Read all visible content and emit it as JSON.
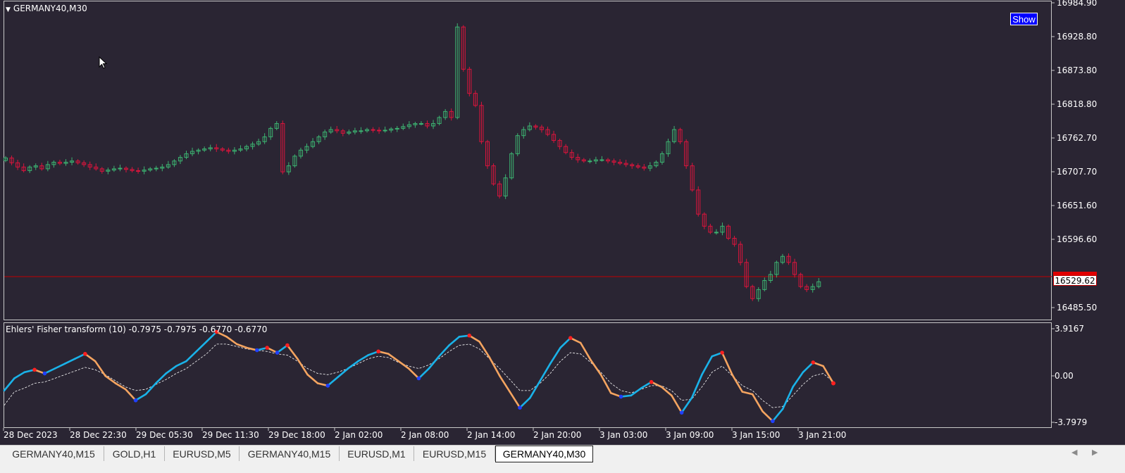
{
  "window": {
    "symbol_title": "GERMANY40,M30",
    "show_button": "Show"
  },
  "price_axis": {
    "labels": [
      "16984.90",
      "16928.80",
      "16873.80",
      "16818.80",
      "16762.70",
      "16707.70",
      "16651.60",
      "16596.60",
      "16485.50"
    ],
    "current_price": "16529.62"
  },
  "indicator": {
    "title": "Ehlers' Fisher transform (10) -0.7975 -0.7975 -0.6770 -0.6770",
    "axis_labels": [
      "3.9167",
      "0.00",
      "-3.7979"
    ]
  },
  "time_axis": {
    "labels": [
      "28 Dec 2023",
      "28 Dec 22:30",
      "29 Dec 05:30",
      "29 Dec 11:30",
      "29 Dec 18:00",
      "2 Jan 02:00",
      "2 Jan 08:00",
      "2 Jan 14:00",
      "2 Jan 20:00",
      "3 Jan 03:00",
      "3 Jan 09:00",
      "3 Jan 15:00",
      "3 Jan 21:00"
    ]
  },
  "tabs": [
    {
      "label": "GERMANY40,M15",
      "active": false
    },
    {
      "label": "GOLD,H1",
      "active": false
    },
    {
      "label": "EURUSD,M5",
      "active": false
    },
    {
      "label": "GERMANY40,M15",
      "active": false
    },
    {
      "label": "EURUSD,M1",
      "active": false
    },
    {
      "label": "EURUSD,M15",
      "active": false
    },
    {
      "label": "GERMANY40,M30",
      "active": true
    }
  ],
  "colors": {
    "background": "#2a2533",
    "bull_candle": "#3cb371",
    "bear_candle": "#dc143c",
    "fisher_up": "#1ab2e8",
    "fisher_down": "#f4a460",
    "signal_line": "#ffffff",
    "price_line": "#c00000"
  },
  "icons": {
    "cursor": "mouse-pointer-icon",
    "tab_scroll_left": "chevron-left-icon",
    "tab_scroll_right": "chevron-right-icon"
  },
  "chart_data": [
    {
      "type": "candlestick",
      "title": "GERMANY40,M30",
      "ylim": [
        16470,
        16990
      ],
      "close": [
        16733,
        16725,
        16718,
        16712,
        16718,
        16720,
        16715,
        16722,
        16726,
        16724,
        16726,
        16728,
        16725,
        16722,
        16718,
        16715,
        16711,
        16713,
        16715,
        16716,
        16714,
        16712,
        16711,
        16713,
        16715,
        16716,
        16718,
        16722,
        16728,
        16734,
        16740,
        16744,
        16746,
        16748,
        16750,
        16748,
        16746,
        16744,
        16746,
        16748,
        16752,
        16756,
        16760,
        16768,
        16782,
        16790,
        16710,
        16720,
        16736,
        16746,
        16752,
        16760,
        16768,
        16776,
        16780,
        16778,
        16774,
        16776,
        16778,
        16778,
        16780,
        16779,
        16778,
        16779,
        16781,
        16782,
        16785,
        16788,
        16790,
        16790,
        16786,
        16790,
        16800,
        16810,
        16800,
        16950,
        16880,
        16840,
        16820,
        16760,
        16720,
        16690,
        16670,
        16700,
        16740,
        16770,
        16780,
        16786,
        16784,
        16780,
        16772,
        16762,
        16752,
        16742,
        16734,
        16730,
        16728,
        16728,
        16730,
        16730,
        16728,
        16726,
        16724,
        16722,
        16720,
        16718,
        16716,
        16720,
        16726,
        16740,
        16760,
        16780,
        16760,
        16720,
        16680,
        16640,
        16620,
        16610,
        16610,
        16620,
        16600,
        16590,
        16560,
        16520,
        16500,
        16515,
        16530,
        16540,
        16560,
        16570,
        16560,
        16540,
        16520,
        16515,
        16520,
        16528
      ]
    },
    {
      "type": "line",
      "title": "Ehlers' Fisher transform (10) -0.7975 -0.7975 -0.6770 -0.6770",
      "ylim": [
        -3.7979,
        3.9167
      ],
      "series": [
        {
          "values": [
            -1.2,
            -0.2,
            0.3,
            0.5,
            0.2,
            0.6,
            1.0,
            1.4,
            1.8,
            1.2,
            0.0,
            -0.6,
            -1.1,
            -2.0,
            -1.5,
            -0.6,
            0.2,
            0.8,
            1.2,
            2.0,
            2.8,
            3.6,
            3.2,
            2.6,
            2.3,
            2.1,
            2.3,
            1.9,
            2.5,
            1.4,
            0.1,
            -0.6,
            -0.8,
            -0.1,
            0.6,
            1.2,
            1.7,
            2.0,
            1.8,
            1.2,
            0.6,
            -0.2,
            0.6,
            1.6,
            2.5,
            3.2,
            3.3,
            2.8,
            1.5,
            0.0,
            -1.3,
            -2.6,
            -1.8,
            -0.4,
            1.0,
            2.3,
            3.1,
            2.7,
            1.3,
            0.1,
            -1.4,
            -1.7,
            -1.6,
            -1.0,
            -0.5,
            -0.9,
            -1.6,
            -3.0,
            -1.8,
            0.1,
            1.6,
            1.9,
            0.1,
            -1.3,
            -1.5,
            -2.9,
            -3.7,
            -2.7,
            -0.9,
            0.3,
            1.1,
            0.8,
            -0.6
          ]
        },
        {
          "values": [
            -2.4,
            -1.3,
            -1.0,
            -0.6,
            -0.5,
            -0.2,
            0.1,
            0.4,
            0.7,
            0.5,
            0.1,
            -0.4,
            -0.9,
            -1.2,
            -1.1,
            -0.7,
            -0.3,
            0.2,
            0.6,
            1.2,
            1.8,
            2.6,
            2.6,
            2.4,
            2.2,
            2.1,
            2.0,
            1.8,
            1.7,
            1.2,
            0.6,
            0.2,
            0.1,
            0.3,
            0.6,
            1.0,
            1.4,
            1.6,
            1.5,
            1.1,
            0.8,
            0.6,
            0.9,
            1.4,
            2.0,
            2.5,
            2.6,
            2.2,
            1.4,
            0.6,
            -0.3,
            -1.2,
            -1.2,
            -0.6,
            0.2,
            1.2,
            1.9,
            1.8,
            1.1,
            0.3,
            -0.6,
            -1.2,
            -1.4,
            -1.1,
            -0.8,
            -0.8,
            -1.2,
            -2.0,
            -1.9,
            -0.9,
            0.3,
            0.8,
            0.0,
            -0.8,
            -1.2,
            -2.0,
            -2.6,
            -2.5,
            -1.6,
            -0.7,
            0.0,
            0.2,
            -0.5
          ]
        }
      ]
    }
  ]
}
